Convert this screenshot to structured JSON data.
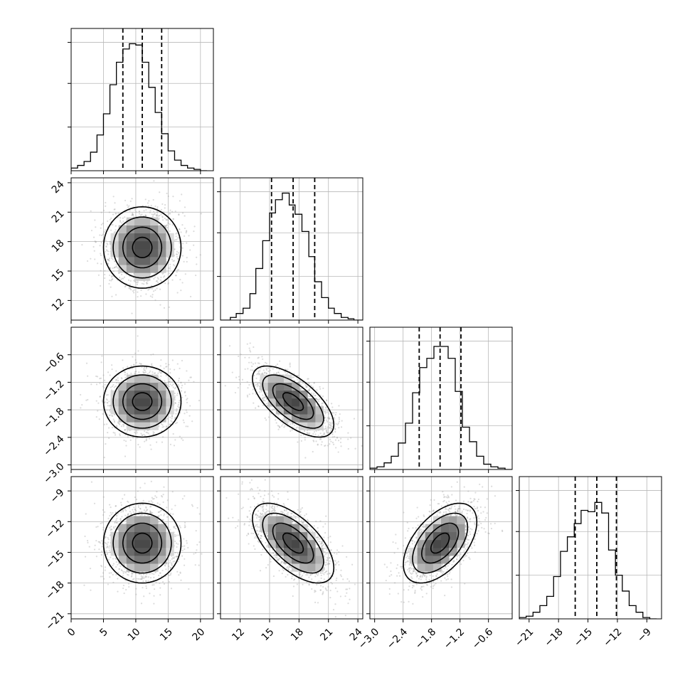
{
  "chart_data": {
    "type": "corner",
    "grid": true,
    "panels": [
      {
        "row": 0,
        "col": 0,
        "type": "histogram",
        "xlim": [
          0,
          22
        ],
        "bins_x": [
          -1,
          0,
          1,
          2,
          3,
          4,
          5,
          6,
          7,
          8,
          9,
          10,
          11,
          12,
          13,
          14,
          15,
          16,
          17,
          18,
          19,
          20,
          21,
          22
        ],
        "counts": [
          0,
          0.02,
          0.04,
          0.07,
          0.14,
          0.27,
          0.43,
          0.65,
          0.82,
          0.92,
          0.96,
          0.95,
          0.82,
          0.63,
          0.44,
          0.28,
          0.15,
          0.08,
          0.04,
          0.02,
          0.01,
          0
        ],
        "quantiles": [
          8,
          11,
          14
        ]
      },
      {
        "row": 1,
        "col": 0,
        "type": "2d-density",
        "xlim": [
          0,
          22
        ],
        "ylim": [
          10,
          24.5
        ],
        "center": [
          11,
          17.4
        ],
        "cov": [
          [
            9,
            0
          ],
          [
            0,
            4.3
          ]
        ]
      },
      {
        "row": 1,
        "col": 1,
        "type": "histogram",
        "xlim": [
          10,
          24.5
        ],
        "bins_x": [
          10,
          11,
          11.6,
          12.3,
          13,
          13.6,
          14.3,
          15,
          15.6,
          16.3,
          17,
          17.6,
          18.3,
          19,
          19.6,
          20.3,
          21,
          21.6,
          22.3,
          23,
          23.6,
          24.5
        ],
        "counts": [
          0,
          0.02,
          0.05,
          0.09,
          0.2,
          0.39,
          0.6,
          0.81,
          0.91,
          0.96,
          0.87,
          0.8,
          0.67,
          0.48,
          0.29,
          0.17,
          0.09,
          0.05,
          0.02,
          0.01,
          0
        ],
        "quantiles": [
          15.2,
          17.4,
          19.6
        ]
      },
      {
        "row": 2,
        "col": 0,
        "type": "2d-density",
        "xlim": [
          0,
          22
        ],
        "ylim": [
          -3.1,
          0.0
        ],
        "center": [
          11,
          -1.62
        ],
        "cov": [
          [
            9,
            0
          ],
          [
            0,
            0.15
          ]
        ]
      },
      {
        "row": 2,
        "col": 1,
        "type": "2d-density",
        "xlim": [
          10,
          24.5
        ],
        "ylim": [
          -3.1,
          0.0
        ],
        "center": [
          17.4,
          -1.62
        ],
        "cov": [
          [
            4.3,
            -0.52
          ],
          [
            -0.52,
            0.15
          ]
        ]
      },
      {
        "row": 2,
        "col": 2,
        "type": "histogram",
        "xlim": [
          -3.1,
          -0.1
        ],
        "bins_x": [
          -3.1,
          -2.95,
          -2.8,
          -2.65,
          -2.5,
          -2.35,
          -2.2,
          -2.05,
          -1.9,
          -1.75,
          -1.6,
          -1.45,
          -1.3,
          -1.15,
          -1.0,
          -0.85,
          -0.7,
          -0.55,
          -0.4,
          -0.25,
          -0.1
        ],
        "counts": [
          0.01,
          0.02,
          0.05,
          0.1,
          0.2,
          0.35,
          0.58,
          0.77,
          0.84,
          0.93,
          0.93,
          0.84,
          0.59,
          0.32,
          0.21,
          0.1,
          0.04,
          0.02,
          0.01,
          0
        ],
        "quantiles": [
          -2.06,
          -1.62,
          -1.18
        ]
      },
      {
        "row": 3,
        "col": 0,
        "type": "2d-density",
        "xlim": [
          0,
          22
        ],
        "ylim": [
          -21.5,
          -7.6
        ],
        "center": [
          11,
          -14.1
        ],
        "cov": [
          [
            9,
            0
          ],
          [
            0,
            3.8
          ]
        ]
      },
      {
        "row": 3,
        "col": 1,
        "type": "2d-density",
        "xlim": [
          10,
          24.5
        ],
        "ylim": [
          -21.5,
          -7.6
        ],
        "center": [
          17.4,
          -14.1
        ],
        "cov": [
          [
            4.3,
            -2.5
          ],
          [
            -2.5,
            3.8
          ]
        ]
      },
      {
        "row": 3,
        "col": 2,
        "type": "2d-density",
        "xlim": [
          -3.1,
          -0.1
        ],
        "ylim": [
          -21.5,
          -7.6
        ],
        "center": [
          -1.62,
          -14.1
        ],
        "cov": [
          [
            0.15,
            0.4
          ],
          [
            0.4,
            3.8
          ]
        ]
      },
      {
        "row": 3,
        "col": 3,
        "type": "histogram",
        "xlim": [
          -22,
          -7.5
        ],
        "bins_x": [
          -22,
          -21.3,
          -20.6,
          -19.9,
          -19.2,
          -18.5,
          -17.8,
          -17.1,
          -16.4,
          -15.7,
          -15.0,
          -14.3,
          -13.6,
          -12.9,
          -12.2,
          -11.5,
          -10.8,
          -10.1,
          -9.4,
          -8.7,
          -8.0
        ],
        "counts": [
          0.01,
          0.02,
          0.05,
          0.1,
          0.17,
          0.32,
          0.51,
          0.62,
          0.72,
          0.82,
          0.81,
          0.88,
          0.8,
          0.52,
          0.33,
          0.21,
          0.1,
          0.05,
          0.01,
          0
        ],
        "quantiles": [
          -16.3,
          -14.1,
          -12.1
        ]
      }
    ],
    "tick_labels": {
      "x": [
        [
          "0",
          "5",
          "10",
          "15",
          "20"
        ],
        [
          "12",
          "15",
          "18",
          "21",
          "24"
        ],
        [
          "−3.0",
          "−2.4",
          "−1.8",
          "−1.2",
          "−0.6"
        ],
        [
          "−21",
          "−18",
          "−15",
          "−12",
          "−9"
        ]
      ],
      "x_values": [
        [
          0,
          5,
          10,
          15,
          20
        ],
        [
          12,
          15,
          18,
          21,
          24
        ],
        [
          -3.0,
          -2.4,
          -1.8,
          -1.2,
          -0.6
        ],
        [
          -21,
          -18,
          -15,
          -12,
          -9
        ]
      ],
      "y": [
        [],
        [
          "12",
          "15",
          "18",
          "21",
          "24"
        ],
        [
          "−3.0",
          "−2.4",
          "−1.8",
          "−1.2",
          "−0.6"
        ],
        [
          "−21",
          "−18",
          "−15",
          "−12",
          "−9"
        ]
      ],
      "y_values": [
        [],
        [
          12,
          15,
          18,
          21,
          24
        ],
        [
          -3.0,
          -2.4,
          -1.8,
          -1.2,
          -0.6
        ],
        [
          -21,
          -18,
          -15,
          -12,
          -9
        ]
      ]
    }
  }
}
